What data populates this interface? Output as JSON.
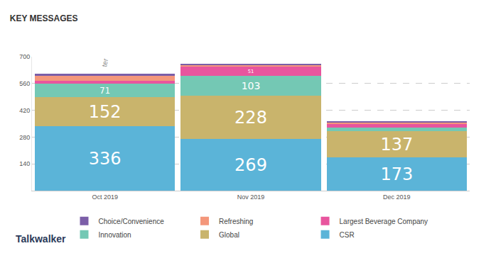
{
  "chart_data": {
    "type": "bar",
    "title": "KEY MESSAGES",
    "stacked": true,
    "grid": true,
    "legend": "bottom",
    "data_labels": true,
    "categories": [
      "Oct 2019",
      "Nov 2019",
      "Dec 2019"
    ],
    "ylim": [
      0,
      700
    ],
    "yticks": [
      140,
      280,
      420,
      560,
      700
    ],
    "series": [
      {
        "name": "CSR",
        "color": "#5bb4d8",
        "values": [
          336,
          269,
          173
        ],
        "value_labels": [
          "336",
          "269",
          "173"
        ]
      },
      {
        "name": "Global",
        "color": "#c9b46c",
        "values": [
          152,
          228,
          137
        ],
        "value_labels": [
          "152",
          "228",
          "137"
        ]
      },
      {
        "name": "Innovation",
        "color": "#74c8b4",
        "values": [
          71,
          103,
          20
        ],
        "value_labels": [
          "71",
          "103",
          null
        ]
      },
      {
        "name": "Largest Beverage Company",
        "color": "#e8559e",
        "values": [
          16,
          51,
          20
        ],
        "value_labels": [
          null,
          "51",
          null
        ]
      },
      {
        "name": "Refreshing",
        "color": "#f4977b",
        "values": [
          24,
          5,
          8
        ],
        "value_labels": [
          null,
          null,
          null
        ]
      },
      {
        "name": "Choice/Convenience",
        "color": "#7b5ea8",
        "values": [
          12,
          8,
          5
        ],
        "value_labels": [
          null,
          null,
          null
        ]
      }
    ],
    "annotations": [
      {
        "text": "ter",
        "x": "Oct 2019",
        "y": 668
      }
    ],
    "brand": "Talkwalker"
  }
}
